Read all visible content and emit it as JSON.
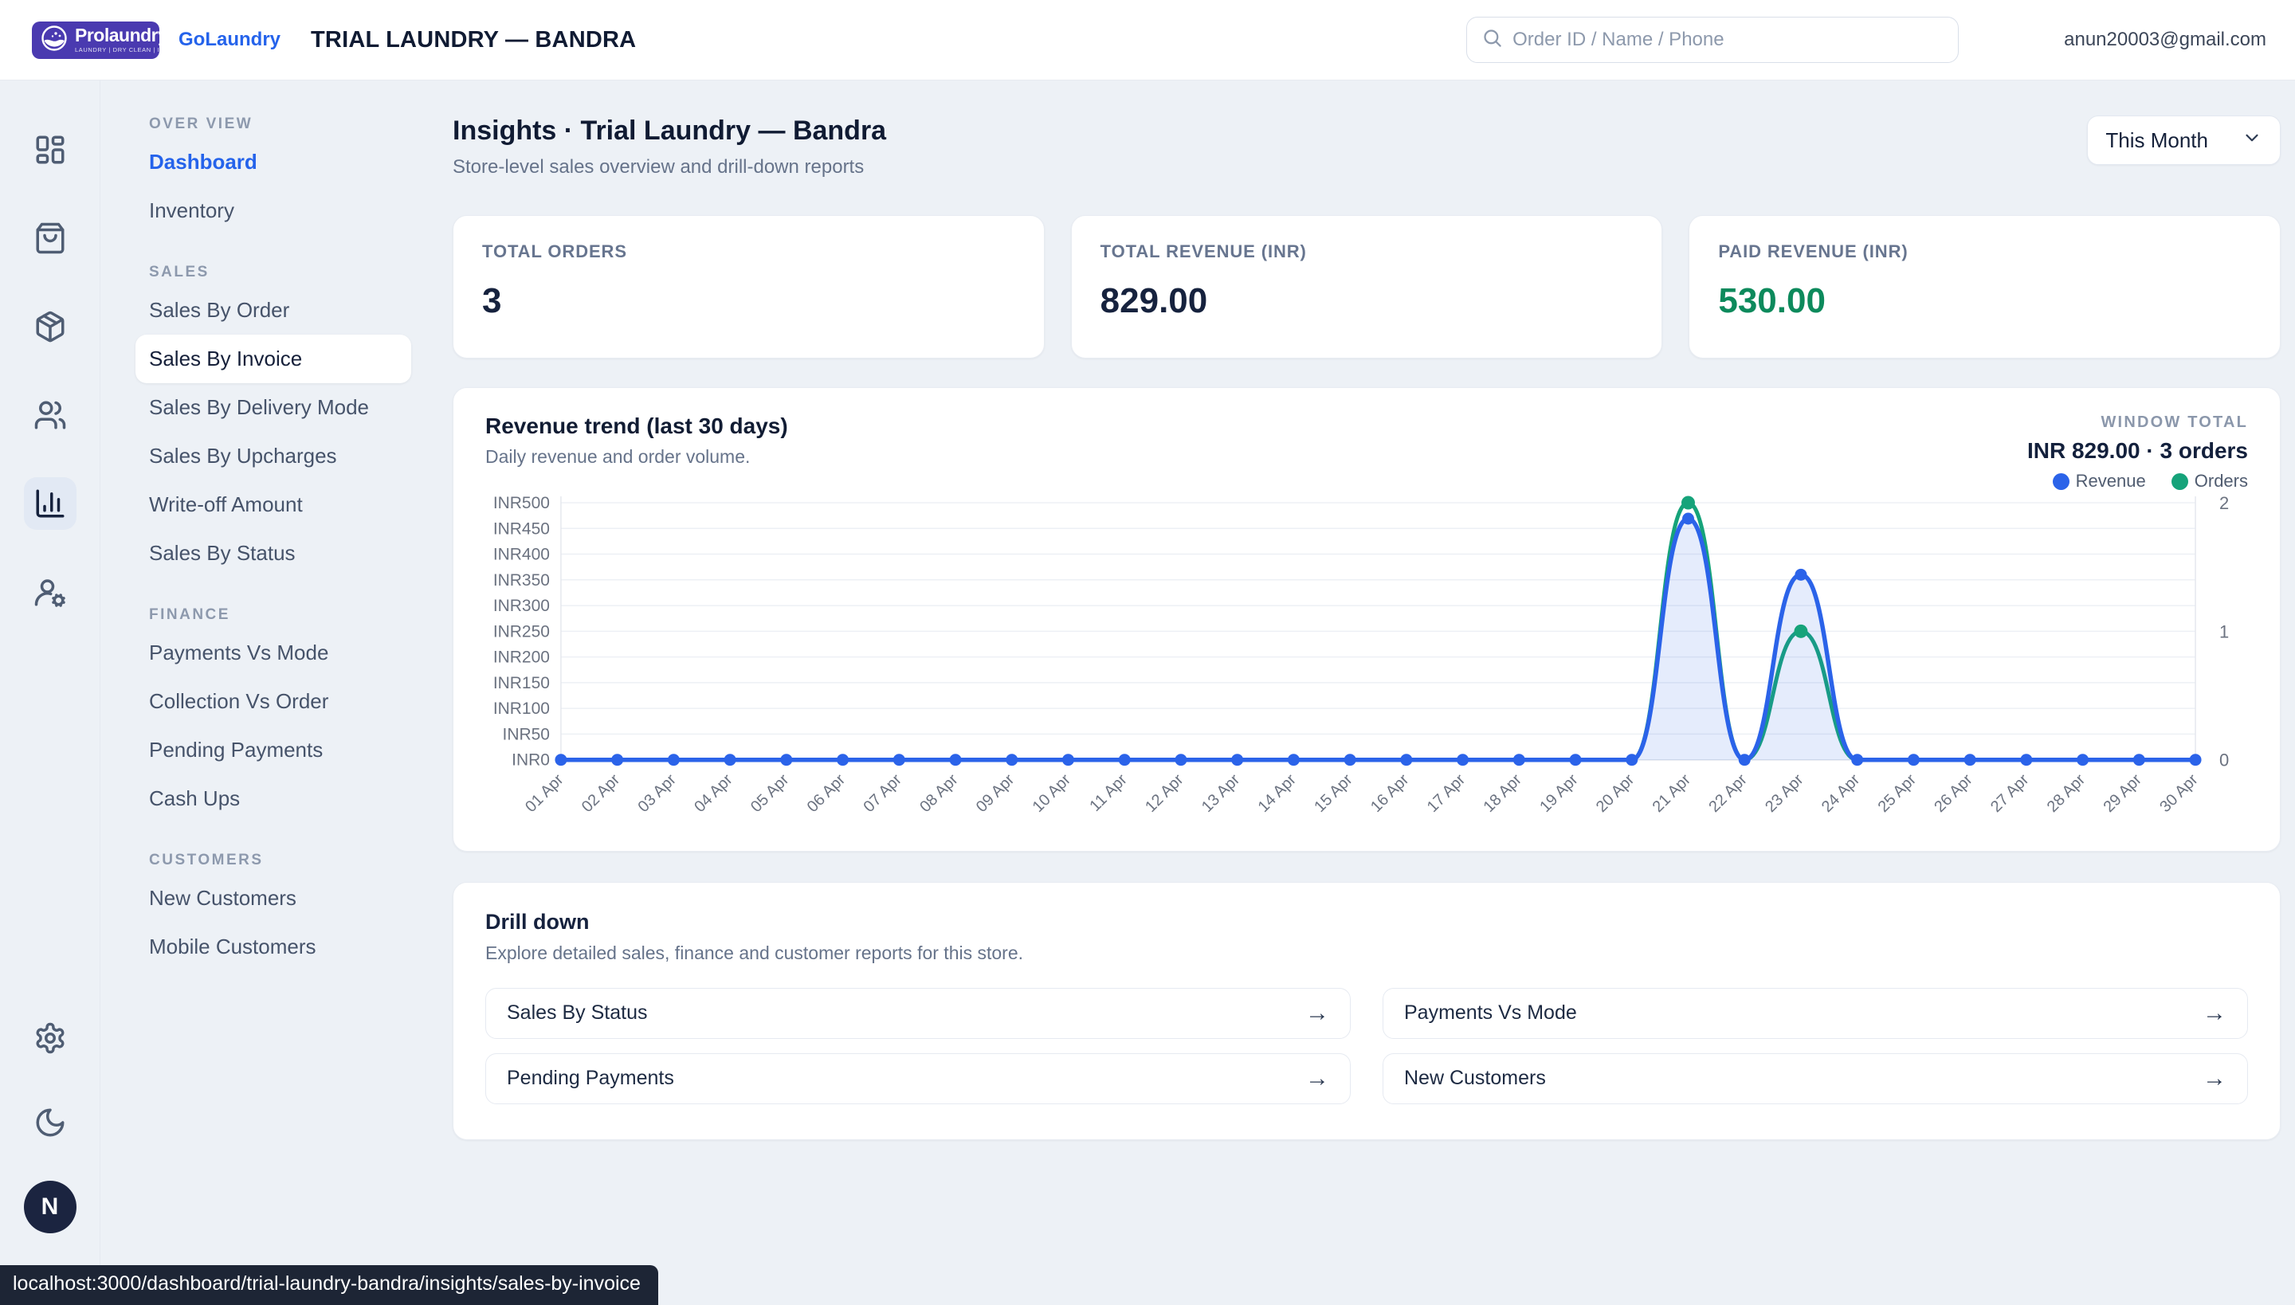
{
  "header": {
    "brand": "Prolaundry",
    "brand_tm": "™",
    "brand_tagline": "LAUNDRY  |  DRY CLEAN  |  IRONING",
    "app_name": "GoLaundry",
    "store_title": "TRIAL LAUNDRY — BANDRA",
    "search_placeholder": "Order ID / Name / Phone",
    "user_email": "anun20003@gmail.com",
    "avatar_initial": "N"
  },
  "rail": {
    "icons": [
      "dashboard-grid-icon",
      "shopping-bag-icon",
      "package-icon",
      "users-icon",
      "bar-chart-icon",
      "user-cog-icon",
      "settings-gear-icon",
      "moon-icon"
    ],
    "active_icon": "bar-chart-icon"
  },
  "sidebar": {
    "sections": [
      {
        "label": "OVER VIEW",
        "items": [
          "Dashboard",
          "Inventory"
        ]
      },
      {
        "label": "SALES",
        "items": [
          "Sales By Order",
          "Sales By Invoice",
          "Sales By Delivery Mode",
          "Sales By Upcharges",
          "Write-off Amount",
          "Sales By Status"
        ]
      },
      {
        "label": "FINANCE",
        "items": [
          "Payments Vs Mode",
          "Collection Vs Order",
          "Pending Payments",
          "Cash Ups"
        ]
      },
      {
        "label": "CUSTOMERS",
        "items": [
          "New Customers",
          "Mobile Customers"
        ]
      }
    ],
    "selected_item": "Sales By Invoice"
  },
  "page": {
    "title": "Insights · Trial Laundry — Bandra",
    "subtitle": "Store-level sales overview and drill-down reports",
    "period_select": "This Month"
  },
  "stats": [
    {
      "label": "TOTAL ORDERS",
      "value": "3"
    },
    {
      "label": "TOTAL REVENUE (INR)",
      "value": "829.00"
    },
    {
      "label": "PAID REVENUE (INR)",
      "value": "530.00"
    }
  ],
  "chart_card": {
    "title": "Revenue trend (last 30 days)",
    "subtitle": "Daily revenue and order volume.",
    "window_total_label": "WINDOW TOTAL",
    "window_total_value": "INR 829.00 · 3 orders",
    "legend": [
      {
        "label": "Revenue",
        "color": "#2b63e9"
      },
      {
        "label": "Orders",
        "color": "#16a37a"
      }
    ]
  },
  "chart_data": {
    "type": "line",
    "title": "Revenue trend (last 30 days)",
    "x": [
      "01 Apr",
      "02 Apr",
      "03 Apr",
      "04 Apr",
      "05 Apr",
      "06 Apr",
      "07 Apr",
      "08 Apr",
      "09 Apr",
      "10 Apr",
      "11 Apr",
      "12 Apr",
      "13 Apr",
      "14 Apr",
      "15 Apr",
      "16 Apr",
      "17 Apr",
      "18 Apr",
      "19 Apr",
      "20 Apr",
      "21 Apr",
      "22 Apr",
      "23 Apr",
      "24 Apr",
      "25 Apr",
      "26 Apr",
      "27 Apr",
      "28 Apr",
      "29 Apr",
      "30 Apr"
    ],
    "series": [
      {
        "name": "Revenue",
        "axis": "left",
        "color": "#2b63e9",
        "area_fill": "rgba(43,99,233,0.12)",
        "values": [
          0,
          0,
          0,
          0,
          0,
          0,
          0,
          0,
          0,
          0,
          0,
          0,
          0,
          0,
          0,
          0,
          0,
          0,
          0,
          0,
          469,
          0,
          360,
          0,
          0,
          0,
          0,
          0,
          0,
          0
        ]
      },
      {
        "name": "Orders",
        "axis": "right",
        "color": "#16a37a",
        "values": [
          0,
          0,
          0,
          0,
          0,
          0,
          0,
          0,
          0,
          0,
          0,
          0,
          0,
          0,
          0,
          0,
          0,
          0,
          0,
          0,
          2,
          0,
          1,
          0,
          0,
          0,
          0,
          0,
          0,
          0
        ]
      }
    ],
    "left_axis": {
      "min": 0,
      "max": 500,
      "step": 50,
      "tick_prefix": "INR"
    },
    "right_axis": {
      "min": 0,
      "max": 2,
      "ticks": [
        0,
        1,
        2
      ]
    },
    "grid": true,
    "legend_position": "top-right"
  },
  "drilldown": {
    "title": "Drill down",
    "subtitle": "Explore detailed sales, finance and customer reports for this store.",
    "links": [
      "Sales By Status",
      "Payments Vs Mode",
      "Pending Payments",
      "New Customers"
    ]
  },
  "statusbar": {
    "url": "localhost:3000/dashboard/trial-laundry-bandra/insights/sales-by-invoice"
  }
}
